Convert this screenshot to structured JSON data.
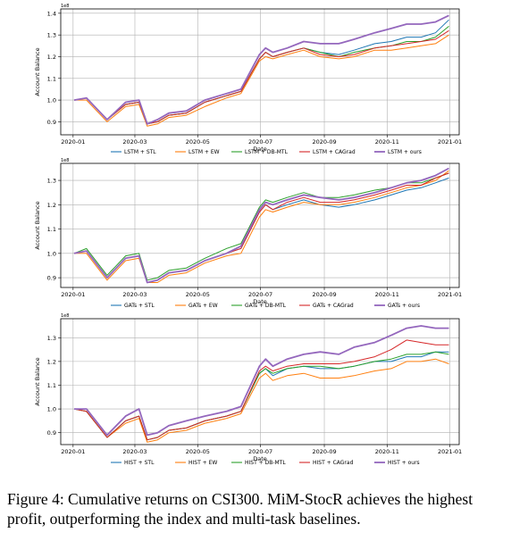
{
  "caption": {
    "text": "Figure 4: Cumulative returns on CSI300. MiM-StocR achieves the highest profit, outperforming the index and multi-task baselines."
  },
  "chart_data": [
    {
      "type": "line",
      "x_dates": [
        "2020-01-02",
        "2020-01-14",
        "2020-02-03",
        "2020-02-21",
        "2020-03-05",
        "2020-03-13",
        "2020-03-23",
        "2020-04-03",
        "2020-04-20",
        "2020-05-08",
        "2020-05-29",
        "2020-06-12",
        "2020-06-30",
        "2020-07-06",
        "2020-07-13",
        "2020-07-27",
        "2020-08-12",
        "2020-08-28",
        "2020-09-15",
        "2020-09-30",
        "2020-10-20",
        "2020-11-05",
        "2020-11-20",
        "2020-12-04",
        "2020-12-18",
        "2020-12-31"
      ],
      "xticks": [
        "2020-01",
        "2020-03",
        "2020-05",
        "2020-07",
        "2020-09",
        "2020-11",
        "2021-01"
      ],
      "xlabel": "Date",
      "ylabel": "Account Balance",
      "scale_note": "1e8",
      "ylim": [
        0.84,
        1.42
      ],
      "yticks": [
        "0.9",
        "1.0",
        "1.1",
        "1.2",
        "1.3",
        "1.4"
      ],
      "grid": true,
      "legend_position": "bottom",
      "series": [
        {
          "name": "LSTM + STL",
          "color": "#1f77b4",
          "values": [
            1.0,
            1.01,
            0.91,
            0.98,
            0.99,
            0.89,
            0.9,
            0.93,
            0.94,
            0.99,
            1.02,
            1.04,
            1.19,
            1.22,
            1.2,
            1.22,
            1.24,
            1.22,
            1.21,
            1.23,
            1.26,
            1.27,
            1.29,
            1.29,
            1.31,
            1.37
          ]
        },
        {
          "name": "LSTM + EW",
          "color": "#ff7f0e",
          "values": [
            1.0,
            1.0,
            0.9,
            0.97,
            0.98,
            0.88,
            0.89,
            0.92,
            0.93,
            0.97,
            1.01,
            1.03,
            1.18,
            1.2,
            1.19,
            1.21,
            1.23,
            1.2,
            1.19,
            1.2,
            1.23,
            1.23,
            1.24,
            1.25,
            1.26,
            1.3
          ]
        },
        {
          "name": "LSTM + DB-MTL",
          "color": "#2ca02c",
          "values": [
            1.0,
            1.01,
            0.91,
            0.98,
            0.99,
            0.89,
            0.9,
            0.93,
            0.94,
            0.99,
            1.02,
            1.04,
            1.19,
            1.22,
            1.2,
            1.22,
            1.24,
            1.22,
            1.2,
            1.22,
            1.24,
            1.25,
            1.27,
            1.27,
            1.29,
            1.34
          ]
        },
        {
          "name": "LSTM + CAGrad",
          "color": "#d62728",
          "values": [
            1.0,
            1.01,
            0.91,
            0.98,
            0.99,
            0.89,
            0.9,
            0.93,
            0.94,
            0.99,
            1.02,
            1.04,
            1.19,
            1.22,
            1.2,
            1.22,
            1.24,
            1.21,
            1.2,
            1.21,
            1.24,
            1.25,
            1.26,
            1.27,
            1.28,
            1.32
          ]
        },
        {
          "name": "LSTM + ours",
          "color": "#9467bd",
          "values": [
            1.0,
            1.01,
            0.91,
            0.99,
            1.0,
            0.89,
            0.91,
            0.94,
            0.95,
            1.0,
            1.03,
            1.05,
            1.21,
            1.24,
            1.22,
            1.24,
            1.27,
            1.26,
            1.26,
            1.28,
            1.31,
            1.33,
            1.35,
            1.35,
            1.36,
            1.39
          ]
        }
      ]
    },
    {
      "type": "line",
      "x_dates": [
        "2020-01-02",
        "2020-01-14",
        "2020-02-03",
        "2020-02-21",
        "2020-03-05",
        "2020-03-13",
        "2020-03-23",
        "2020-04-03",
        "2020-04-20",
        "2020-05-08",
        "2020-05-29",
        "2020-06-12",
        "2020-06-30",
        "2020-07-06",
        "2020-07-13",
        "2020-07-27",
        "2020-08-12",
        "2020-08-28",
        "2020-09-15",
        "2020-09-30",
        "2020-10-20",
        "2020-11-05",
        "2020-11-20",
        "2020-12-04",
        "2020-12-18",
        "2020-12-31"
      ],
      "xticks": [
        "2020-01",
        "2020-03",
        "2020-05",
        "2020-07",
        "2020-09",
        "2020-11",
        "2021-01"
      ],
      "xlabel": "Date",
      "ylabel": "Account Balance",
      "scale_note": "1e8",
      "ylim": [
        0.86,
        1.37
      ],
      "yticks": [
        "0.9",
        "1.0",
        "1.1",
        "1.2",
        "1.3"
      ],
      "grid": true,
      "legend_position": "bottom",
      "series": [
        {
          "name": "GATs + STL",
          "color": "#1f77b4",
          "values": [
            1.0,
            1.01,
            0.9,
            0.98,
            0.99,
            0.88,
            0.89,
            0.92,
            0.93,
            0.97,
            1.0,
            1.02,
            1.17,
            1.2,
            1.18,
            1.2,
            1.22,
            1.2,
            1.19,
            1.2,
            1.22,
            1.24,
            1.26,
            1.27,
            1.29,
            1.31
          ]
        },
        {
          "name": "GATs + EW",
          "color": "#ff7f0e",
          "values": [
            1.0,
            1.0,
            0.89,
            0.97,
            0.98,
            0.88,
            0.88,
            0.91,
            0.92,
            0.96,
            0.99,
            1.0,
            1.15,
            1.18,
            1.17,
            1.19,
            1.21,
            1.2,
            1.2,
            1.21,
            1.23,
            1.25,
            1.27,
            1.28,
            1.3,
            1.34
          ]
        },
        {
          "name": "GATs + DB-MTL",
          "color": "#2ca02c",
          "values": [
            1.0,
            1.02,
            0.91,
            0.99,
            1.0,
            0.89,
            0.9,
            0.93,
            0.94,
            0.98,
            1.02,
            1.04,
            1.19,
            1.22,
            1.21,
            1.23,
            1.25,
            1.23,
            1.23,
            1.24,
            1.26,
            1.27,
            1.29,
            1.29,
            1.31,
            1.33
          ]
        },
        {
          "name": "GATs + CAGrad",
          "color": "#d62728",
          "values": [
            1.0,
            1.01,
            0.9,
            0.98,
            0.99,
            0.88,
            0.89,
            0.92,
            0.93,
            0.97,
            1.0,
            1.02,
            1.17,
            1.2,
            1.18,
            1.21,
            1.23,
            1.21,
            1.21,
            1.22,
            1.24,
            1.26,
            1.28,
            1.28,
            1.31,
            1.33
          ]
        },
        {
          "name": "GATs + ours",
          "color": "#9467bd",
          "values": [
            1.0,
            1.01,
            0.9,
            0.98,
            0.99,
            0.88,
            0.89,
            0.92,
            0.93,
            0.97,
            1.0,
            1.03,
            1.18,
            1.21,
            1.2,
            1.22,
            1.24,
            1.23,
            1.22,
            1.23,
            1.25,
            1.27,
            1.29,
            1.3,
            1.32,
            1.35
          ]
        }
      ]
    },
    {
      "type": "line",
      "x_dates": [
        "2020-01-02",
        "2020-01-14",
        "2020-02-03",
        "2020-02-21",
        "2020-03-05",
        "2020-03-13",
        "2020-03-23",
        "2020-04-03",
        "2020-04-20",
        "2020-05-08",
        "2020-05-29",
        "2020-06-12",
        "2020-06-30",
        "2020-07-06",
        "2020-07-13",
        "2020-07-27",
        "2020-08-12",
        "2020-08-28",
        "2020-09-15",
        "2020-09-30",
        "2020-10-20",
        "2020-11-05",
        "2020-11-20",
        "2020-12-04",
        "2020-12-18",
        "2020-12-31"
      ],
      "xticks": [
        "2020-01",
        "2020-03",
        "2020-05",
        "2020-07",
        "2020-09",
        "2020-11",
        "2021-01"
      ],
      "xlabel": "Date",
      "ylabel": "Account Balance",
      "scale_note": "1e8",
      "ylim": [
        0.85,
        1.38
      ],
      "yticks": [
        "0.9",
        "1.0",
        "1.1",
        "1.2",
        "1.3"
      ],
      "grid": true,
      "legend_position": "bottom",
      "series": [
        {
          "name": "HIST + STL",
          "color": "#1f77b4",
          "values": [
            1.0,
            0.99,
            0.88,
            0.95,
            0.97,
            0.87,
            0.88,
            0.91,
            0.92,
            0.95,
            0.97,
            0.99,
            1.15,
            1.17,
            1.14,
            1.17,
            1.18,
            1.17,
            1.17,
            1.18,
            1.2,
            1.2,
            1.22,
            1.22,
            1.24,
            1.24
          ]
        },
        {
          "name": "HIST + EW",
          "color": "#ff7f0e",
          "values": [
            1.0,
            0.99,
            0.88,
            0.94,
            0.96,
            0.86,
            0.87,
            0.9,
            0.91,
            0.94,
            0.96,
            0.98,
            1.13,
            1.15,
            1.12,
            1.14,
            1.15,
            1.13,
            1.13,
            1.14,
            1.16,
            1.17,
            1.2,
            1.2,
            1.21,
            1.19
          ]
        },
        {
          "name": "HIST + DB-MTL",
          "color": "#2ca02c",
          "values": [
            1.0,
            0.99,
            0.88,
            0.95,
            0.97,
            0.87,
            0.88,
            0.91,
            0.92,
            0.95,
            0.97,
            0.99,
            1.15,
            1.17,
            1.15,
            1.17,
            1.18,
            1.18,
            1.17,
            1.18,
            1.2,
            1.21,
            1.23,
            1.23,
            1.24,
            1.23
          ]
        },
        {
          "name": "HIST + CAGrad",
          "color": "#d62728",
          "values": [
            1.0,
            0.99,
            0.88,
            0.95,
            0.97,
            0.87,
            0.88,
            0.91,
            0.92,
            0.95,
            0.97,
            0.99,
            1.16,
            1.18,
            1.16,
            1.18,
            1.19,
            1.19,
            1.19,
            1.2,
            1.22,
            1.25,
            1.29,
            1.28,
            1.27,
            1.27
          ]
        },
        {
          "name": "HIST + ours",
          "color": "#9467bd",
          "values": [
            1.0,
            1.0,
            0.89,
            0.97,
            1.0,
            0.89,
            0.9,
            0.93,
            0.95,
            0.97,
            0.99,
            1.01,
            1.18,
            1.21,
            1.18,
            1.21,
            1.23,
            1.24,
            1.23,
            1.26,
            1.28,
            1.31,
            1.34,
            1.35,
            1.34,
            1.34
          ]
        }
      ]
    }
  ]
}
